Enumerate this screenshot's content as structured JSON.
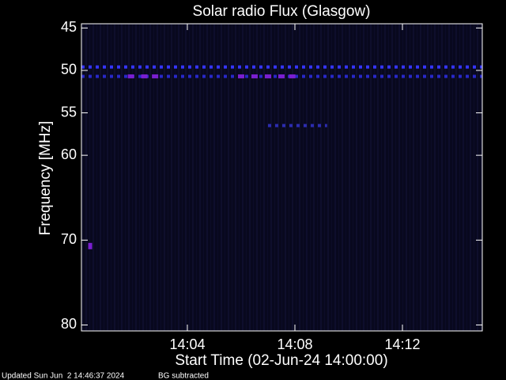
{
  "chart_data": {
    "type": "spectrogram",
    "title": "Solar radio Flux (Glasgow)",
    "x_label": "Start Time (02-Jun-24 14:00:00)",
    "y_label": "Frequency [MHz]",
    "xlim": [
      0.06,
      14.97
    ],
    "xticks": [
      {
        "value": 4,
        "label": "14:04"
      },
      {
        "value": 8,
        "label": "14:08"
      },
      {
        "value": 12,
        "label": "14:12"
      }
    ],
    "ylim": [
      44.5,
      80.7
    ],
    "yticks": [
      45,
      50,
      55,
      60,
      70,
      80
    ],
    "background": "#08081e",
    "lines": [
      {
        "freq": 49.6,
        "x": [
          0.06,
          14.97
        ],
        "color": "#3535ff"
      },
      {
        "freq": 50.7,
        "x": [
          0.06,
          14.97
        ],
        "color": "#2828c8"
      },
      {
        "freq": 56.5,
        "x": [
          7.0,
          9.2
        ],
        "color": "#2c2cb0"
      }
    ],
    "bursts": {
      "color": "#7a1fd0",
      "freq": 50.7,
      "x": [
        1.9,
        2.4,
        2.8,
        6.0,
        6.5,
        7.0,
        7.5,
        7.9
      ]
    },
    "spot": {
      "color": "#7a1fd0",
      "freq": 70.7,
      "x": 0.4
    },
    "footer": [
      "Updated Sun Jun  2 14:46:37 2024",
      "BG subtracted"
    ]
  }
}
